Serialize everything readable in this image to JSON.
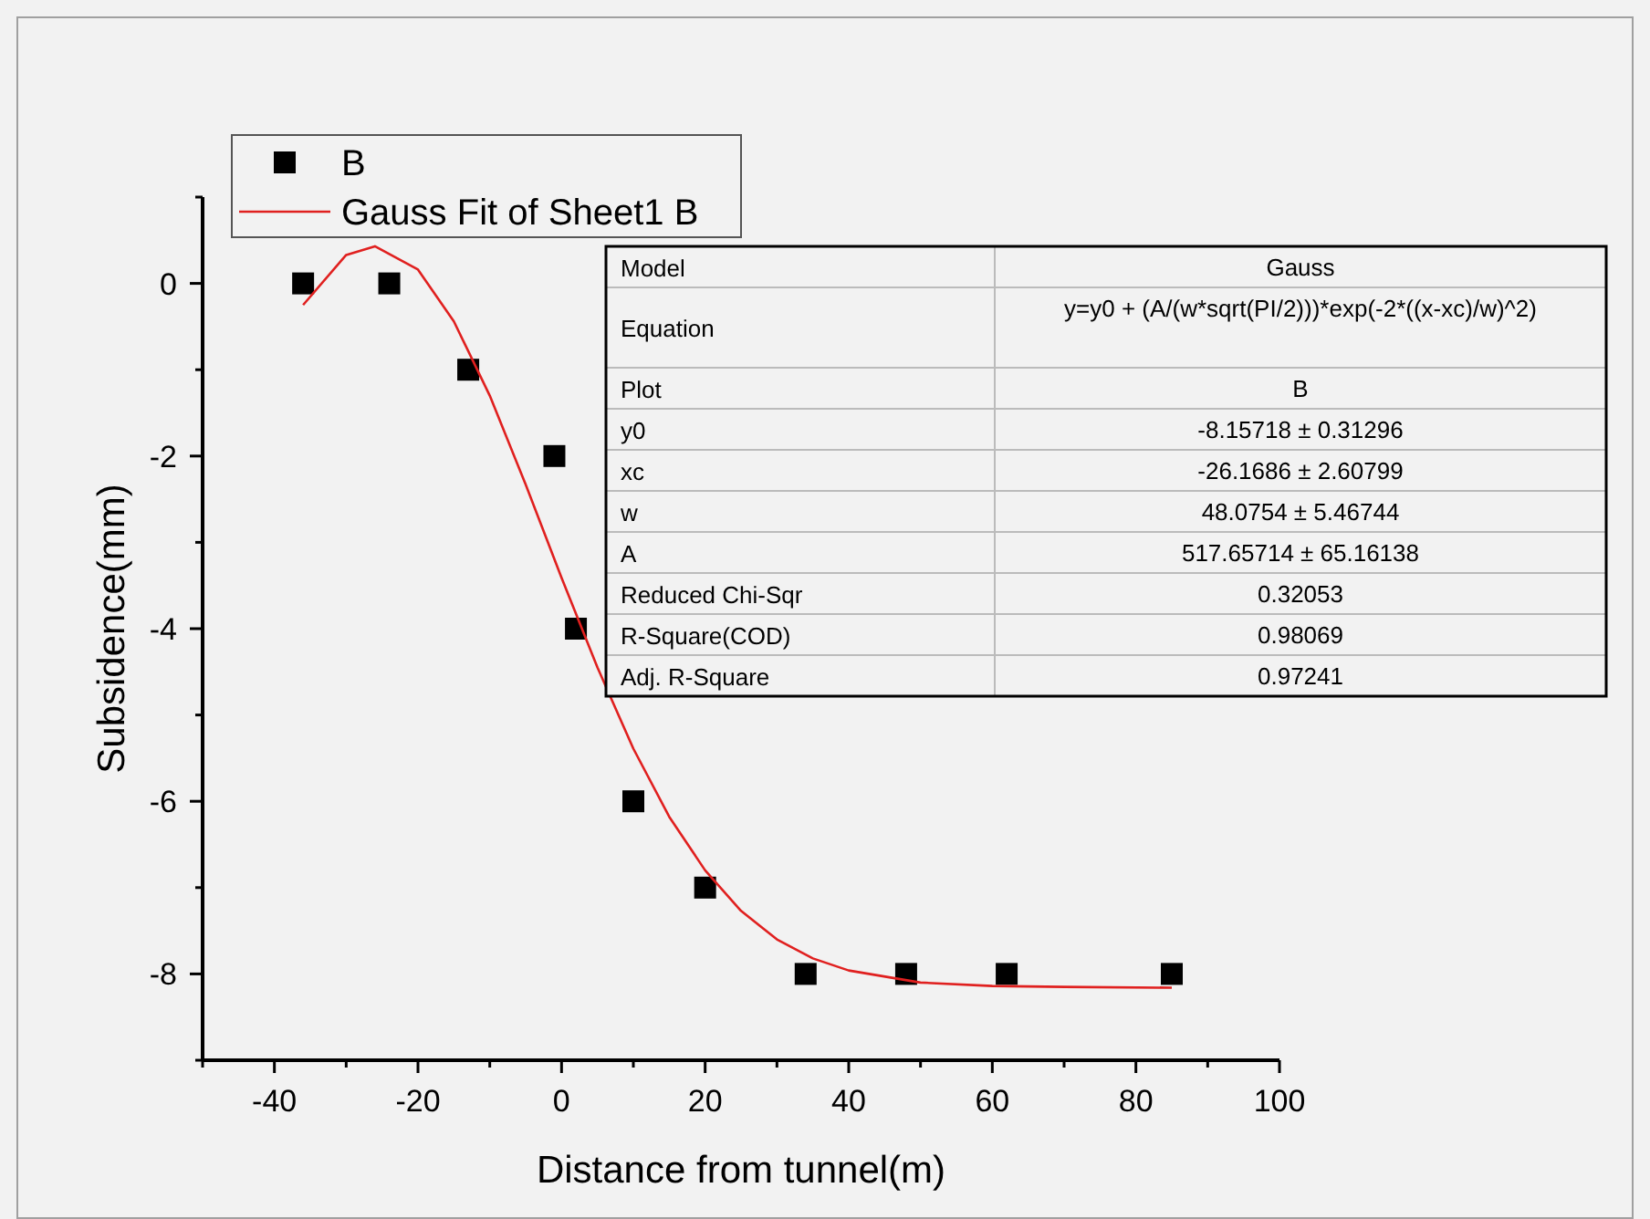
{
  "chart_data": {
    "type": "scatter",
    "xlabel": "Distance from tunnel(m)",
    "ylabel": "Subsidence(mm)",
    "xlim": [
      -50,
      100
    ],
    "ylim": [
      -9,
      1
    ],
    "xticks": [
      {
        "value": -50,
        "label": null
      },
      -40,
      {
        "value": -30,
        "label": null
      },
      -20,
      {
        "value": -10,
        "label": null
      },
      0,
      {
        "value": 10,
        "label": null
      },
      20,
      {
        "value": 30,
        "label": null
      },
      40,
      {
        "value": 50,
        "label": null
      },
      60,
      {
        "value": 70,
        "label": null
      },
      80,
      {
        "value": 90,
        "label": null
      },
      100
    ],
    "yticks": [
      {
        "value": 1,
        "label": null
      },
      0,
      {
        "value": -1,
        "label": null
      },
      -2,
      {
        "value": -3,
        "label": null
      },
      -4,
      {
        "value": -5,
        "label": null
      },
      -6,
      {
        "value": -7,
        "label": null
      },
      -8,
      {
        "value": -9,
        "label": null
      }
    ],
    "legend": "top left",
    "series": [
      {
        "name": "B",
        "marker": "square",
        "color": "#000000",
        "x": [
          -36,
          -24,
          -13,
          -1,
          2,
          10,
          20,
          34,
          48,
          62,
          85
        ],
        "values": [
          0,
          0,
          -1,
          -2,
          -4,
          -6,
          -7,
          -8,
          -8,
          -8,
          -8
        ]
      },
      {
        "name": "Gauss Fit of Sheet1 B",
        "type": "line",
        "color": "#e0201f",
        "marker": "none",
        "line_style": "solid",
        "x": [
          -36,
          -30,
          -26,
          -20,
          -15,
          -10,
          -5,
          0,
          5,
          10,
          15,
          20,
          25,
          30,
          35,
          40,
          50,
          60,
          70,
          85
        ],
        "values": [
          -0.25,
          0.33,
          0.43,
          0.16,
          -0.44,
          -1.3,
          -2.33,
          -3.41,
          -4.45,
          -5.39,
          -6.18,
          -6.8,
          -7.27,
          -7.6,
          -7.82,
          -7.96,
          -8.1,
          -8.14,
          -8.15,
          -8.16
        ]
      }
    ],
    "annotations": [
      "Model",
      "Gauss",
      "Equation",
      "y=y0 + (A/(w*sqrt(PI/2)))*exp(-2*((x-xc)/w)^2)",
      "Plot",
      "B",
      "y0",
      "-8.15718 ± 0.31296",
      "xc",
      "-26.1686 ± 2.60799",
      "w",
      "48.0754 ± 5.46744",
      "A",
      "517.65714 ± 65.16138",
      "Reduced Chi-Sqr",
      "0.32053",
      "R-Square(COD)",
      "0.98069",
      "Adj. R-Square",
      "0.97241"
    ]
  }
}
